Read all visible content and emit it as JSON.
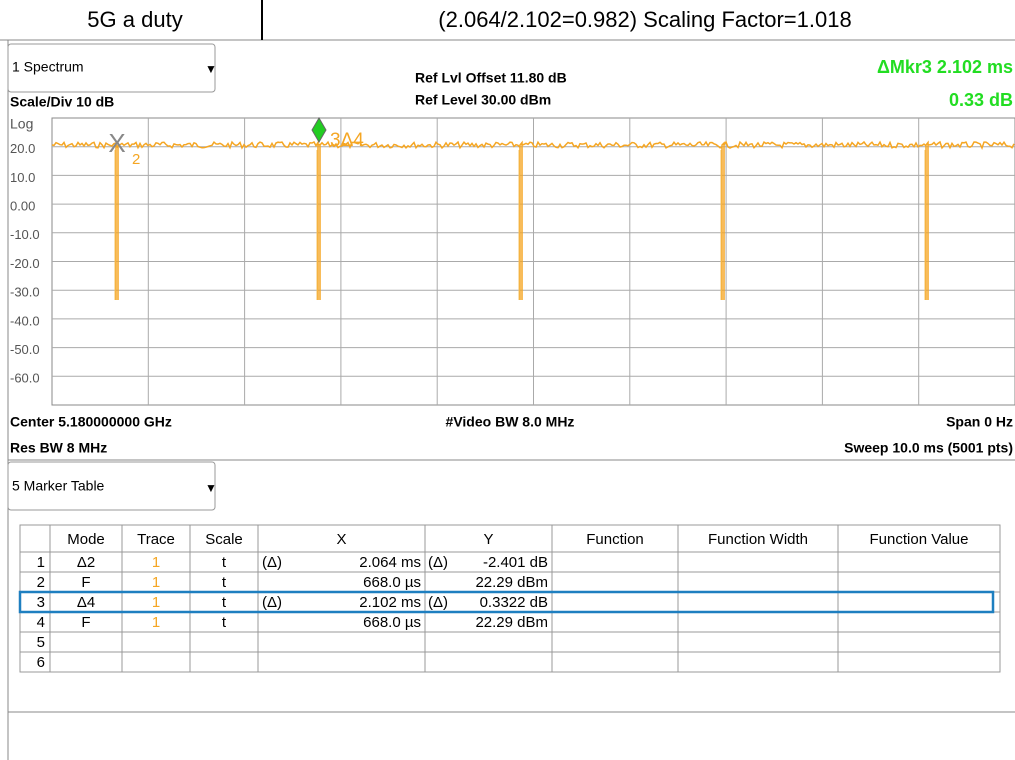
{
  "header": {
    "title": "5G a duty",
    "scaling": "(2.064/2.102=0.982) Scaling Factor=1.018"
  },
  "spectrum": {
    "window": "1 Spectrum",
    "ref_offset": "Ref Lvl Offset 11.80 dB",
    "ref_level": "Ref Level 30.00 dBm",
    "scale_div": "Scale/Div 10 dB",
    "scale_type": "Log",
    "marker_readout": [
      "ΔMkr3  2.102 ms",
      "0.33 dB"
    ],
    "y_labels": [
      "20.0",
      "10.0",
      "0.00",
      "-10.0",
      "-20.0",
      "-30.0",
      "-40.0",
      "-50.0",
      "-60.0"
    ],
    "marker_labels": [
      "2",
      "3Δ4"
    ],
    "center": "Center 5.180000000 GHz",
    "video_bw": "#Video BW 8.0 MHz",
    "span": "Span 0 Hz",
    "res_bw": "Res BW 8 MHz",
    "sweep": "Sweep 10.0 ms (5001 pts)"
  },
  "marker_table": {
    "window": "5 Marker Table",
    "columns": [
      "Mode",
      "Trace",
      "Scale",
      "X",
      "Y",
      "Function",
      "Function Width",
      "Function Value"
    ],
    "rows": [
      {
        "n": "1",
        "mode": "Δ2",
        "trace": "1",
        "scale": "t",
        "xref": "(Δ)",
        "x": "2.064 ms",
        "yref": "(Δ)",
        "y": "-2.401 dB"
      },
      {
        "n": "2",
        "mode": "F",
        "trace": "1",
        "scale": "t",
        "x": "668.0 µs",
        "y": "22.29 dBm"
      },
      {
        "n": "3",
        "mode": "Δ4",
        "trace": "1",
        "scale": "t",
        "xref": "(Δ)",
        "x": "2.102 ms",
        "yref": "(Δ)",
        "y": "0.3322 dB"
      },
      {
        "n": "4",
        "mode": "F",
        "trace": "1",
        "scale": "t",
        "x": "668.0 µs",
        "y": "22.29 dBm"
      },
      {
        "n": "5"
      },
      {
        "n": "6"
      }
    ]
  }
}
